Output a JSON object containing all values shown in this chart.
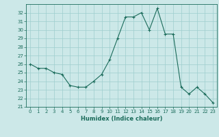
{
  "x": [
    0,
    1,
    2,
    3,
    4,
    5,
    6,
    7,
    8,
    9,
    10,
    11,
    12,
    13,
    14,
    15,
    16,
    17,
    18,
    19,
    20,
    21,
    22,
    23
  ],
  "y": [
    26,
    25.5,
    25.5,
    25,
    24.8,
    23.5,
    23.3,
    23.3,
    24,
    24.8,
    26.5,
    29,
    31.5,
    31.5,
    32,
    30,
    32.5,
    29.5,
    29.5,
    23.3,
    22.5,
    23.3,
    22.5,
    21.5
  ],
  "line_color": "#1a6b5a",
  "marker": "+",
  "marker_size": 3,
  "marker_linewidth": 0.8,
  "bg_color": "#cce8e8",
  "grid_color": "#9ecece",
  "xlabel": "Humidex (Indice chaleur)",
  "ylim_min": 21,
  "ylim_max": 33,
  "xlim_min": -0.5,
  "xlim_max": 23.5,
  "yticks": [
    21,
    22,
    23,
    24,
    25,
    26,
    27,
    28,
    29,
    30,
    31,
    32
  ],
  "xticks": [
    0,
    1,
    2,
    3,
    4,
    5,
    6,
    7,
    8,
    9,
    10,
    11,
    12,
    13,
    14,
    15,
    16,
    17,
    18,
    19,
    20,
    21,
    22,
    23
  ],
  "tick_fontsize": 5,
  "label_fontsize": 6,
  "linewidth": 0.8
}
